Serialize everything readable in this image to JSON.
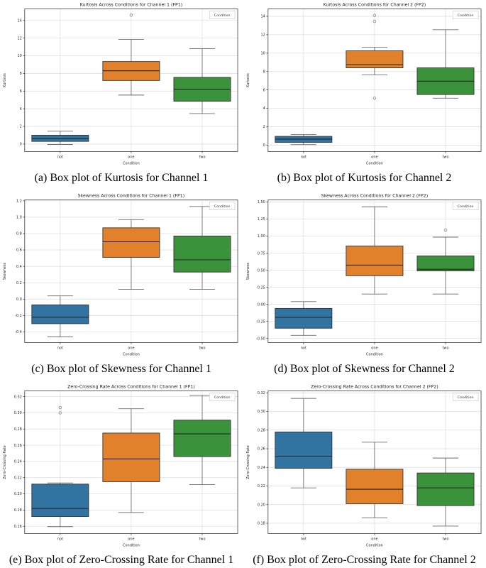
{
  "style": {
    "grid_color": "#dcdcdc",
    "spine_color": "#3a3a3a",
    "whisker_color": "#6e6e6e",
    "box_edge_color": "#333333",
    "median_color": "#252525",
    "outlier_color": "#8a8a8a",
    "legend_border_color": "#cccccc",
    "text_color": "#262626",
    "palette": {
      "not": "#3274a1",
      "one": "#e1812c",
      "two": "#3a923a"
    }
  },
  "chart_data": [
    {
      "type": "box",
      "title": "Kurtosis Across Conditions for Channel 1 (FP1)",
      "xlabel": "Condition",
      "ylabel": "Kurtosis",
      "caption": "(a) Box plot of Kurtosis for Channel 1",
      "legend_label": "Condition",
      "legend_position": "upper right",
      "grid": true,
      "categories": [
        "not",
        "one",
        "two"
      ],
      "ylim": [
        -0.85,
        15.3
      ],
      "ytick_vals": [
        0,
        2,
        4,
        6,
        8,
        10,
        12,
        14
      ],
      "ytick_labels": [
        "0",
        "2",
        "4",
        "6",
        "8",
        "10",
        "12",
        "14"
      ],
      "boxes": [
        {
          "label": "not",
          "color": "#3274a1",
          "whisker_low": -0.05,
          "q1": 0.3,
          "median": 0.6,
          "q3": 1.0,
          "whisker_high": 1.45,
          "outliers": []
        },
        {
          "label": "one",
          "color": "#e1812c",
          "whisker_low": 5.55,
          "q1": 7.2,
          "median": 8.3,
          "q3": 9.35,
          "whisker_high": 11.85,
          "outliers": [
            14.6
          ]
        },
        {
          "label": "two",
          "color": "#3a923a",
          "whisker_low": 3.45,
          "q1": 4.85,
          "median": 6.2,
          "q3": 7.55,
          "whisker_high": 10.8,
          "outliers": []
        }
      ]
    },
    {
      "type": "box",
      "title": "Kurtosis Across Conditions for Channel 2 (FP2)",
      "xlabel": "Condition",
      "ylabel": "Kurtosis",
      "caption": "(b) Box plot of Kurtosis for Channel 2",
      "legend_label": "Condition",
      "legend_position": "upper right",
      "grid": true,
      "categories": [
        "not",
        "one",
        "two"
      ],
      "ylim": [
        -0.7,
        14.8
      ],
      "ytick_vals": [
        0,
        2,
        4,
        6,
        8,
        10,
        12,
        14
      ],
      "ytick_labels": [
        "0",
        "2",
        "4",
        "6",
        "8",
        "10",
        "12",
        "14"
      ],
      "boxes": [
        {
          "label": "not",
          "color": "#3274a1",
          "whisker_low": 0.05,
          "q1": 0.3,
          "median": 0.65,
          "q3": 0.95,
          "whisker_high": 1.15,
          "outliers": []
        },
        {
          "label": "one",
          "color": "#e1812c",
          "whisker_low": 7.65,
          "q1": 8.4,
          "median": 8.75,
          "q3": 10.25,
          "whisker_high": 10.65,
          "outliers": [
            14.1,
            13.45,
            5.1
          ]
        },
        {
          "label": "two",
          "color": "#3a923a",
          "whisker_low": 5.1,
          "q1": 5.5,
          "median": 6.95,
          "q3": 8.4,
          "whisker_high": 12.55,
          "outliers": []
        }
      ]
    },
    {
      "type": "box",
      "title": "Skewness Across Conditions for Channel 1 (FP1)",
      "xlabel": "Condition",
      "ylabel": "Skewness",
      "caption": "(c) Box plot of Skewness for Channel 1",
      "legend_label": "Condition",
      "legend_position": "upper right",
      "grid": true,
      "categories": [
        "not",
        "one",
        "two"
      ],
      "ylim": [
        -0.53,
        1.21
      ],
      "ytick_vals": [
        -0.4,
        -0.2,
        0.0,
        0.2,
        0.4,
        0.6,
        0.8,
        1.0,
        1.2
      ],
      "ytick_labels": [
        "-0.4",
        "-0.2",
        "0.0",
        "0.2",
        "0.4",
        "0.6",
        "0.8",
        "1.0",
        "1.2"
      ],
      "boxes": [
        {
          "label": "not",
          "color": "#3274a1",
          "whisker_low": -0.46,
          "q1": -0.3,
          "median": -0.22,
          "q3": -0.07,
          "whisker_high": 0.04,
          "outliers": []
        },
        {
          "label": "one",
          "color": "#e1812c",
          "whisker_low": 0.12,
          "q1": 0.51,
          "median": 0.7,
          "q3": 0.87,
          "whisker_high": 0.97,
          "outliers": []
        },
        {
          "label": "two",
          "color": "#3a923a",
          "whisker_low": 0.12,
          "q1": 0.33,
          "median": 0.48,
          "q3": 0.77,
          "whisker_high": 1.13,
          "outliers": []
        }
      ]
    },
    {
      "type": "box",
      "title": "Skewness Across Conditions for Channel 2 (FP2)",
      "xlabel": "Condition",
      "ylabel": "Skewness",
      "caption": "(d) Box plot of Skewness for Channel 2",
      "legend_label": "Condition",
      "legend_position": "upper right",
      "grid": true,
      "categories": [
        "not",
        "one",
        "two"
      ],
      "ylim": [
        -0.56,
        1.53
      ],
      "ytick_vals": [
        -0.5,
        -0.25,
        0.0,
        0.25,
        0.5,
        0.75,
        1.0,
        1.25,
        1.5
      ],
      "ytick_labels": [
        "-0.50",
        "-0.25",
        "0.00",
        "0.25",
        "0.50",
        "0.75",
        "1.00",
        "1.25",
        "1.50"
      ],
      "boxes": [
        {
          "label": "not",
          "color": "#3274a1",
          "whisker_low": -0.455,
          "q1": -0.35,
          "median": -0.19,
          "q3": -0.06,
          "whisker_high": 0.04,
          "outliers": []
        },
        {
          "label": "one",
          "color": "#e1812c",
          "whisker_low": 0.15,
          "q1": 0.42,
          "median": 0.575,
          "q3": 0.855,
          "whisker_high": 1.43,
          "outliers": []
        },
        {
          "label": "two",
          "color": "#3a923a",
          "whisker_low": 0.15,
          "q1": 0.49,
          "median": 0.515,
          "q3": 0.71,
          "whisker_high": 0.985,
          "outliers": [
            1.09
          ]
        }
      ]
    },
    {
      "type": "box",
      "title": "Zero-Crossing Rate Across Conditions for Channel 1 (FP1)",
      "xlabel": "Condition",
      "ylabel": "Zero-Crossing Rate",
      "caption": "(e) Box plot of Zero-Crossing Rate for Channel 1",
      "legend_label": "Condition",
      "legend_position": "upper right",
      "grid": true,
      "categories": [
        "not",
        "one",
        "two"
      ],
      "ylim": [
        0.151,
        0.327
      ],
      "ytick_vals": [
        0.16,
        0.18,
        0.2,
        0.22,
        0.24,
        0.26,
        0.28,
        0.3,
        0.32
      ],
      "ytick_labels": [
        "0.16",
        "0.18",
        "0.20",
        "0.22",
        "0.24",
        "0.26",
        "0.28",
        "0.30",
        "0.32"
      ],
      "boxes": [
        {
          "label": "not",
          "color": "#3274a1",
          "whisker_low": 0.1595,
          "q1": 0.172,
          "median": 0.182,
          "q3": 0.212,
          "whisker_high": 0.2135,
          "outliers": [
            0.3,
            0.3065
          ]
        },
        {
          "label": "one",
          "color": "#e1812c",
          "whisker_low": 0.177,
          "q1": 0.215,
          "median": 0.243,
          "q3": 0.275,
          "whisker_high": 0.305,
          "outliers": []
        },
        {
          "label": "two",
          "color": "#3a923a",
          "whisker_low": 0.2115,
          "q1": 0.246,
          "median": 0.274,
          "q3": 0.291,
          "whisker_high": 0.3215,
          "outliers": []
        }
      ]
    },
    {
      "type": "box",
      "title": "Zero-Crossing Rate Across Conditions for Channel 2 (FP2)",
      "xlabel": "Condition",
      "ylabel": "Zero-Crossing Rate",
      "caption": "(f) Box plot of Zero-Crossing Rate for Channel 2",
      "legend_label": "Condition",
      "legend_position": "upper right",
      "grid": true,
      "categories": [
        "not",
        "one",
        "two"
      ],
      "ylim": [
        0.169,
        0.322
      ],
      "ytick_vals": [
        0.18,
        0.2,
        0.22,
        0.24,
        0.26,
        0.28,
        0.3,
        0.32
      ],
      "ytick_labels": [
        "0.18",
        "0.20",
        "0.22",
        "0.24",
        "0.26",
        "0.28",
        "0.30",
        "0.32"
      ],
      "boxes": [
        {
          "label": "not",
          "color": "#3274a1",
          "whisker_low": 0.218,
          "q1": 0.239,
          "median": 0.252,
          "q3": 0.278,
          "whisker_high": 0.314,
          "outliers": []
        },
        {
          "label": "one",
          "color": "#e1812c",
          "whisker_low": 0.186,
          "q1": 0.201,
          "median": 0.2165,
          "q3": 0.238,
          "whisker_high": 0.267,
          "outliers": []
        },
        {
          "label": "two",
          "color": "#3a923a",
          "whisker_low": 0.177,
          "q1": 0.199,
          "median": 0.218,
          "q3": 0.234,
          "whisker_high": 0.25,
          "outliers": []
        }
      ]
    }
  ]
}
